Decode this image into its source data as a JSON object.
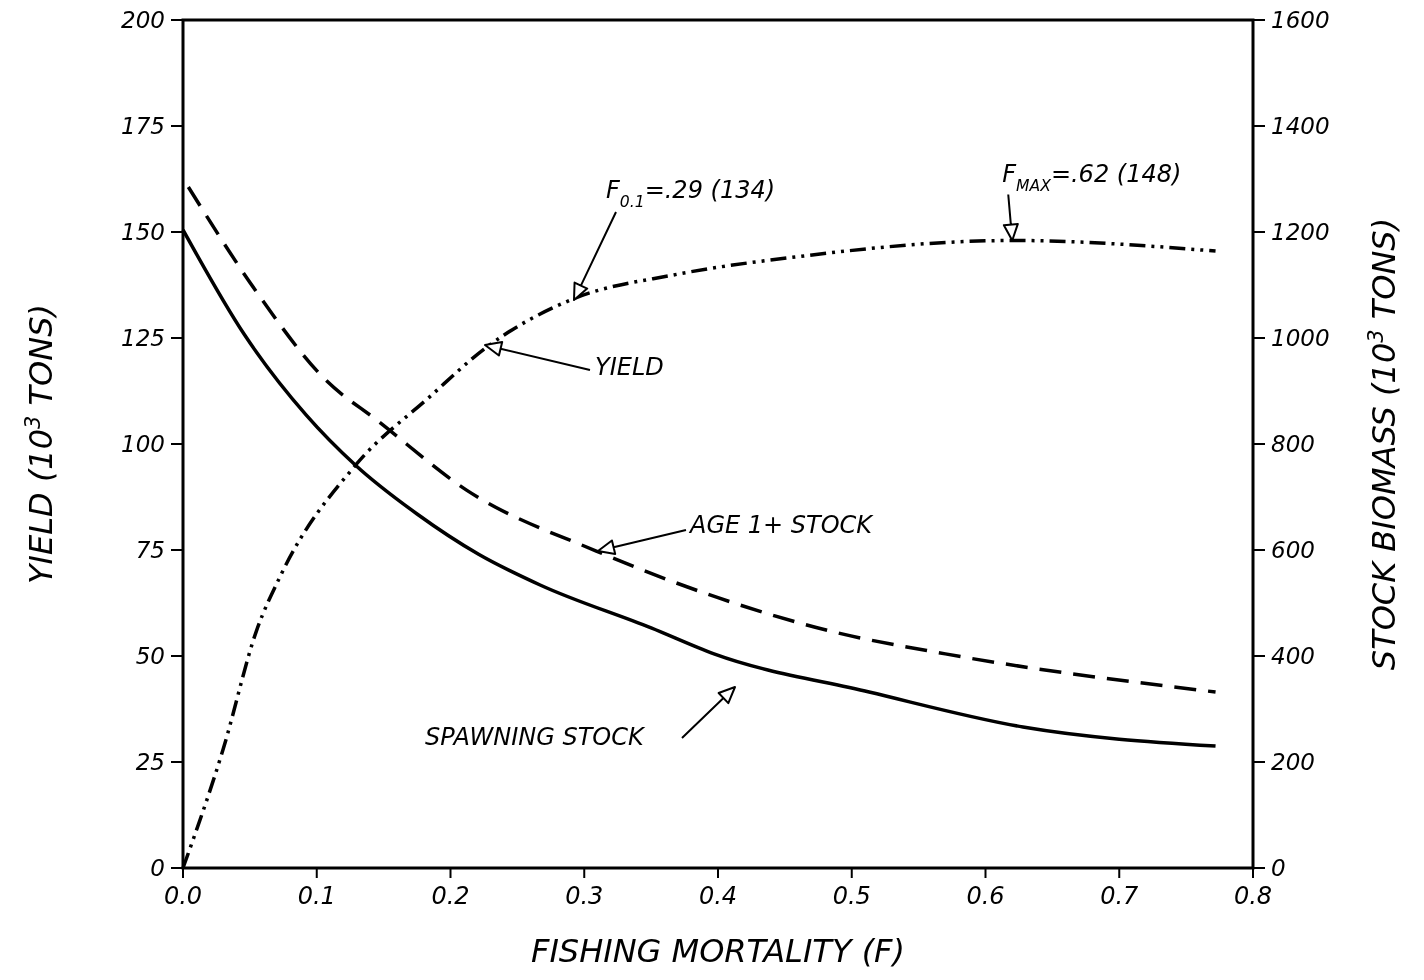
{
  "chart_data": {
    "type": "line",
    "xlabel": "FISHING MORTALITY (F)",
    "ylabel": "YIELD (10$^{3}$ TONS)",
    "y2label": "STOCK BIOMASS (10$^{3}$ TONS)",
    "xlim": [
      0,
      0.8
    ],
    "xticks": [
      {
        "value": 0,
        "label": "0.0"
      },
      0.1,
      0.2,
      0.3,
      0.4,
      0.5,
      0.6,
      0.7,
      0.8
    ],
    "ylim": [
      0,
      200
    ],
    "yticks": [
      0,
      25,
      50,
      75,
      100,
      125,
      150,
      175,
      200
    ],
    "y2lim": [
      0,
      1600
    ],
    "y2ticks": [
      0,
      200,
      400,
      600,
      800,
      1000,
      1200,
      1400,
      1600
    ],
    "series": [
      {
        "color": "#000000",
        "line_style": "dotted",
        "x": [
          0,
          0.03,
          0.055,
          0.073,
          0.129,
          0.184,
          0.226,
          0.29,
          0.369,
          0.455,
          0.62,
          0.772
        ],
        "values": [
          0,
          28,
          56,
          69,
          95,
          111,
          122.6,
          134,
          140,
          144,
          148,
          145.5
        ]
      },
      {
        "color": "#000000",
        "line_style": "dashed",
        "axis": "y2",
        "x": [
          0.004,
          0.055,
          0.105,
          0.147,
          0.212,
          0.309,
          0.4,
          0.484,
          0.57,
          0.772
        ],
        "values": [
          1285,
          1087,
          925,
          841,
          713,
          598,
          510,
          447,
          404,
          332
        ]
      },
      {
        "color": "#000000",
        "line_style": "solid",
        "axis": "y2",
        "x": [
          0,
          0.046,
          0.092,
          0.129,
          0.175,
          0.221,
          0.267,
          0.35,
          0.397,
          0.513,
          0.628,
          0.772
        ],
        "values": [
          1204,
          1006,
          855,
          760,
          668,
          592,
          534,
          453,
          404,
          332,
          266,
          230
        ]
      }
    ],
    "annotations": [
      "F$_{0.1}$=.29 (134)",
      {
        "text": "F$_{MAX}$=.62 (148)",
        "x": 0.62,
        "y": 148
      },
      "YIELD",
      "AGE 1+ STOCK",
      "SPAWNING STOCK"
    ]
  }
}
